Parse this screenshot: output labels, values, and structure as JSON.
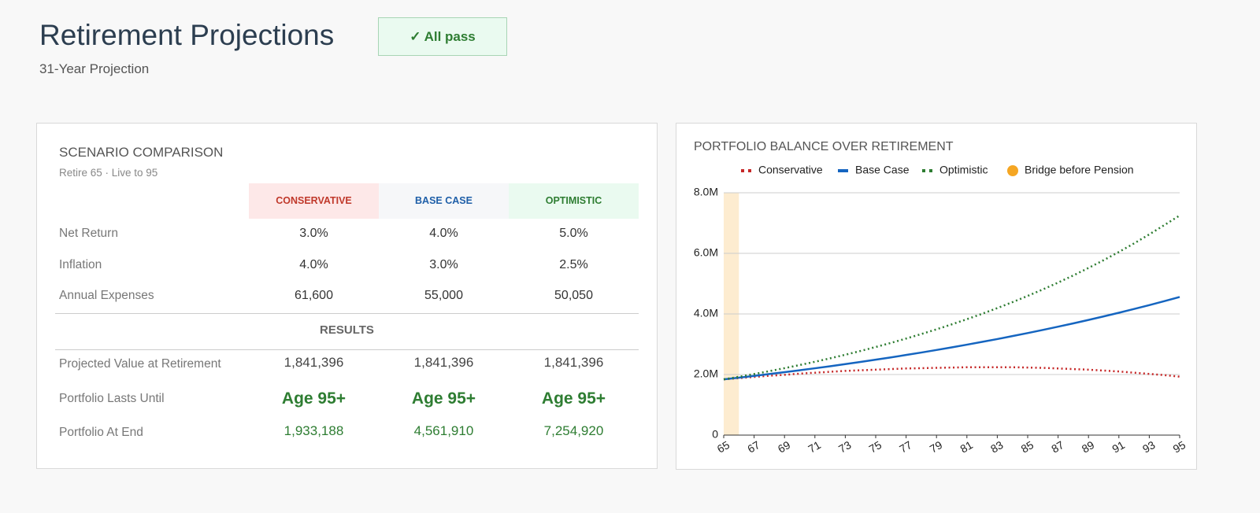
{
  "header": {
    "title": "Retirement Projections",
    "subtitle": "31-Year Projection",
    "badge": "✓ All pass"
  },
  "table": {
    "title": "SCENARIO COMPARISON",
    "subtitle": "Retire 65 · Live to 95",
    "columns": [
      {
        "label": "CONSERVATIVE",
        "color": "#c0392b",
        "background": "#fde8e8"
      },
      {
        "label": "BASE CASE",
        "color": "#1f5fa8",
        "background": "#f6f7f9"
      },
      {
        "label": "OPTIMISTIC",
        "color": "#2e7d32",
        "background": "#eafaf0"
      }
    ],
    "input_rows": [
      {
        "label": "Net Return",
        "cells": [
          "3.0%",
          "4.0%",
          "5.0%"
        ]
      },
      {
        "label": "Inflation",
        "cells": [
          "4.0%",
          "3.0%",
          "2.5%"
        ]
      },
      {
        "label": "Annual Expenses",
        "cells": [
          "61,600",
          "55,000",
          "50,050"
        ]
      }
    ],
    "results_heading": "RESULTS",
    "result_rows": [
      {
        "label": "Projected Value at Retirement",
        "cells": [
          "1,841,396",
          "1,841,396",
          "1,841,396"
        ]
      },
      {
        "label": "Portfolio Lasts Until",
        "cells": [
          "Age 95+",
          "Age 95+",
          "Age 95+"
        ]
      },
      {
        "label": "Portfolio At End",
        "cells": [
          "1,933,188",
          "4,561,910",
          "7,254,920"
        ]
      }
    ]
  },
  "chart_data": {
    "type": "line",
    "title": "PORTFOLIO BALANCE OVER RETIREMENT",
    "x": [
      65,
      66,
      67,
      68,
      69,
      70,
      71,
      72,
      73,
      74,
      75,
      76,
      77,
      78,
      79,
      80,
      81,
      82,
      83,
      84,
      85,
      86,
      87,
      88,
      89,
      90,
      91,
      92,
      93,
      94,
      95
    ],
    "xlim": [
      65,
      95
    ],
    "xticks": [
      65,
      67,
      69,
      71,
      73,
      75,
      77,
      79,
      81,
      83,
      85,
      87,
      89,
      91,
      93,
      95
    ],
    "ylim": [
      0,
      8000000
    ],
    "yticks": [
      0,
      {
        "value": 2000000,
        "label": "2.0M"
      },
      {
        "value": 4000000,
        "label": "4.0M"
      },
      {
        "value": 6000000,
        "label": "6.0M"
      },
      {
        "value": 8000000,
        "label": "8.0M"
      }
    ],
    "grid": true,
    "series": [
      {
        "name": "Conservative",
        "color": "#c62828",
        "line_style": "dotted",
        "values": [
          1840000,
          1880000,
          1920000,
          1960000,
          1990000,
          2030000,
          2060000,
          2090000,
          2120000,
          2140000,
          2160000,
          2180000,
          2200000,
          2210000,
          2220000,
          2230000,
          2240000,
          2240000,
          2240000,
          2240000,
          2230000,
          2220000,
          2200000,
          2180000,
          2160000,
          2130000,
          2100000,
          2060000,
          2020000,
          1980000,
          1930000
        ]
      },
      {
        "name": "Base Case",
        "color": "#1565c0",
        "line_style": "solid",
        "values": [
          1840000,
          1896000,
          1955000,
          2015000,
          2077000,
          2140000,
          2206000,
          2274000,
          2344000,
          2416000,
          2490000,
          2566000,
          2645000,
          2726000,
          2810000,
          2896000,
          2985000,
          3077000,
          3171000,
          3269000,
          3369000,
          3473000,
          3579000,
          3689000,
          3802000,
          3919000,
          4039000,
          4163000,
          4291000,
          4423000,
          4560000
        ]
      },
      {
        "name": "Optimistic",
        "color": "#2e7d32",
        "line_style": "dotted",
        "values": [
          1840000,
          1926000,
          2016000,
          2111000,
          2210000,
          2313000,
          2421000,
          2535000,
          2653000,
          2778000,
          2908000,
          3044000,
          3187000,
          3336000,
          3492000,
          3655000,
          3826000,
          4005000,
          4193000,
          4389000,
          4595000,
          4810000,
          5035000,
          5271000,
          5518000,
          5776000,
          6046000,
          6329000,
          6626000,
          6936000,
          7250000
        ]
      }
    ],
    "highlight": {
      "name": "Bridge before Pension",
      "color": "#fdecd0",
      "legend_color": "#f5a623",
      "x_range": [
        65,
        66
      ]
    }
  }
}
